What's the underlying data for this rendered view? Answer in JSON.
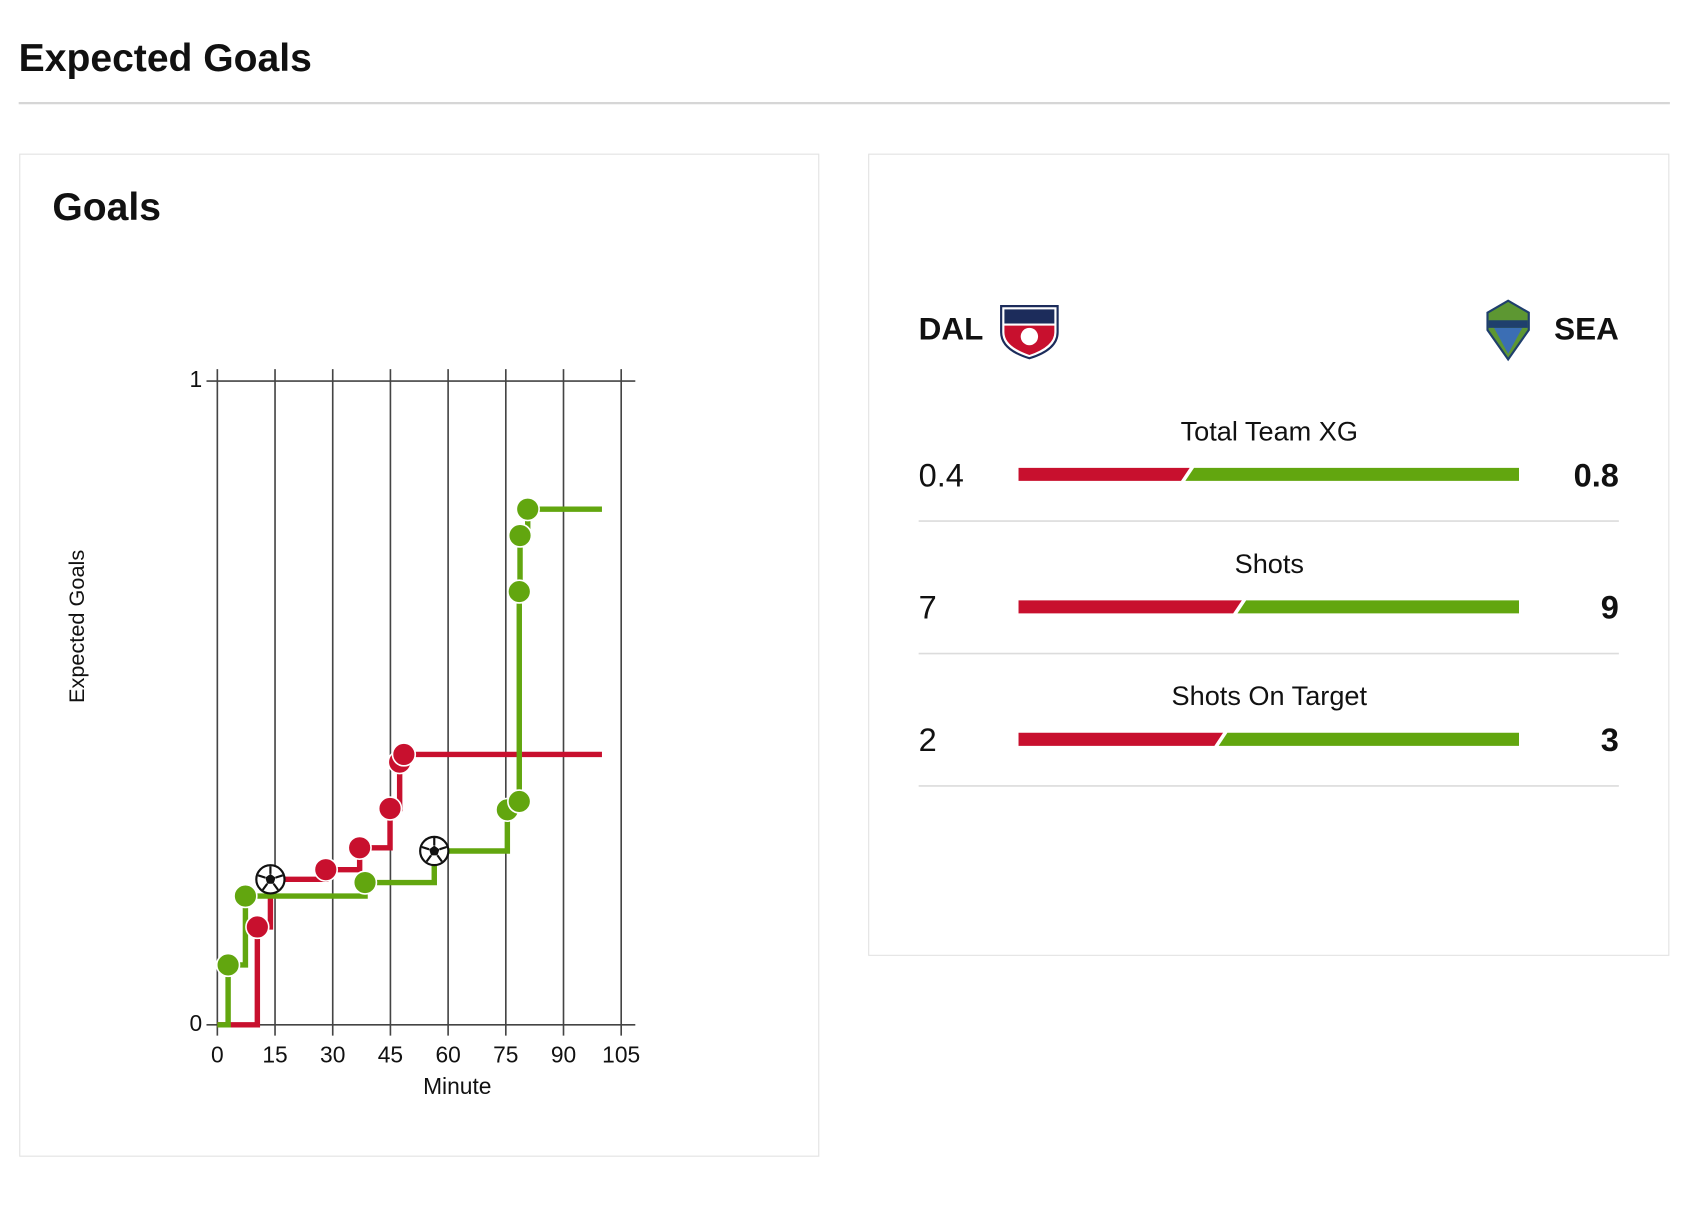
{
  "page_title": "Expected Goals",
  "chart_data": {
    "type": "step",
    "title": "Goals",
    "x_label": "Minute",
    "y_label": "Expected Goals",
    "xlim": [
      0,
      105
    ],
    "xticks": [
      0,
      15,
      30,
      45,
      60,
      75,
      90,
      105
    ],
    "ylim": [
      0,
      1
    ],
    "yticks": [
      0,
      1
    ],
    "grid": true,
    "final_minute": 100,
    "series": [
      {
        "color": "#c8102e",
        "x": [
          10.4,
          13.8,
          28.2,
          37,
          44.9,
          47.4,
          48.5
        ],
        "values": [
          0.152,
          0.226,
          0.241,
          0.275,
          0.336,
          0.408,
          0.42
        ],
        "markers": [
          "shot",
          "goal",
          "shot",
          "shot",
          "shot",
          "shot",
          "shot"
        ]
      },
      {
        "color": "#62a60f",
        "x": [
          2.8,
          7.3,
          38.4,
          56.4,
          75.4,
          78.5,
          78.5,
          78.7,
          80.7
        ],
        "values": [
          0.093,
          0.2,
          0.221,
          0.27,
          0.334,
          0.347,
          0.673,
          0.76,
          0.801
        ],
        "markers": [
          "shot",
          "shot",
          "shot",
          "goal",
          "shot",
          "shot",
          "shot",
          "shot",
          "shot"
        ]
      }
    ]
  },
  "comparison": {
    "home": "DAL",
    "away": "SEA",
    "home_color": "#c8102e",
    "away_color": "#62a60f",
    "rows": [
      {
        "label": "Total Team XG",
        "home": 0.4,
        "away": 0.8
      },
      {
        "label": "Shots",
        "home": 7,
        "away": 9
      },
      {
        "label": "Shots On Target",
        "home": 2,
        "away": 3
      }
    ]
  }
}
